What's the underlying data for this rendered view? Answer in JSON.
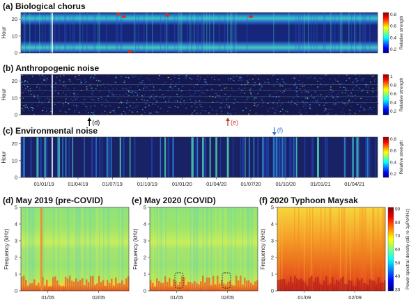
{
  "chart_data": [
    {
      "type": "heatmap",
      "title": "(a) Biological chorus",
      "ylabel": "Hour",
      "yticks": [
        0,
        10,
        20
      ],
      "ylim": [
        0,
        24
      ],
      "colorbar": {
        "label": "Relative strength",
        "ticks": [
          "0.8",
          "0.6",
          "0.4",
          "0.2"
        ],
        "colormap": "jet"
      }
    },
    {
      "type": "heatmap",
      "title": "(b) Anthropogenic noise",
      "ylabel": "Hour",
      "yticks": [
        0,
        10,
        20
      ],
      "ylim": [
        0,
        24
      ],
      "colorbar": {
        "label": "Relative strength",
        "ticks": [
          "1",
          "0.8",
          "0.6",
          "0.4",
          "0.2"
        ],
        "colormap": "jet"
      },
      "annotations": [
        {
          "label": "(d)",
          "date": "2019-05-01",
          "color": "#000000"
        },
        {
          "label": "(e)",
          "date": "2020-05-01",
          "color": "#c0392b"
        }
      ]
    },
    {
      "type": "heatmap",
      "title": "(c) Environmental noise",
      "ylabel": "Hour",
      "yticks": [
        0,
        10,
        20
      ],
      "ylim": [
        0,
        24
      ],
      "colorbar": {
        "label": "Relative strength",
        "ticks": [
          "0.8",
          "0.6",
          "0.4",
          "0.2"
        ],
        "colormap": "jet"
      },
      "xticks": [
        "01/01/19",
        "01/04/19",
        "01/07/19",
        "01/10/19",
        "01/01/20",
        "01/04/20",
        "01/07/20",
        "01/10/20",
        "01/01/21",
        "01/04/21"
      ],
      "annotations": [
        {
          "label": "(f)",
          "date": "2020-09-01",
          "color": "#3a78c4"
        }
      ]
    },
    {
      "type": "heatmap",
      "title": "(d) May 2019 (pre-COVID)",
      "ylabel": "Frequency (kHz)",
      "yticks": [
        0,
        1,
        2,
        3,
        4,
        5
      ],
      "ylim": [
        0,
        5
      ],
      "xticks": [
        "01/05",
        "02/05"
      ]
    },
    {
      "type": "heatmap",
      "title": "(e) May 2020 (COVID)",
      "ylabel": "Frequency (kHz)",
      "yticks": [
        0,
        1,
        2,
        3,
        4,
        5
      ],
      "ylim": [
        0,
        5
      ],
      "xticks": [
        "01/05",
        "02/05"
      ]
    },
    {
      "type": "heatmap",
      "title": "(f) 2020 Typhoon Maysak",
      "ylabel": "Frequency (kHz)",
      "yticks": [
        0,
        1,
        2,
        3,
        4,
        5
      ],
      "ylim": [
        0,
        5
      ],
      "xticks": [
        "01/09",
        "02/09"
      ],
      "colorbar": {
        "label": "Power spectral density (dB re 1μPa²/Hz)",
        "ticks": [
          "90",
          "80",
          "70",
          "60",
          "50",
          "40",
          "30"
        ],
        "range": [
          30,
          90
        ],
        "colormap": "jet"
      }
    }
  ]
}
